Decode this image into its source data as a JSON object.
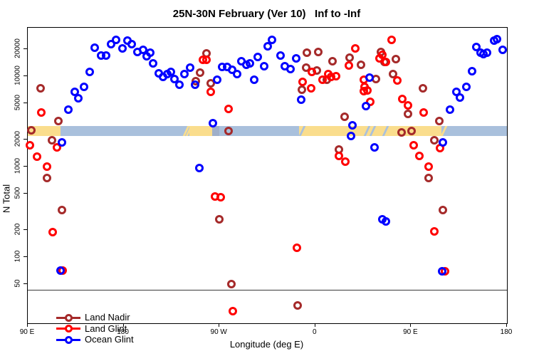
{
  "chart_data": {
    "type": "scatter",
    "title": "25N-30N February (Ver 10)   Inf to -Inf",
    "xlabel": "Longitude (deg E)",
    "ylabel": "N Total",
    "x_axis": {
      "range": [
        90,
        540
      ],
      "ticks": [
        {
          "lon": 90,
          "label": "90 E"
        },
        {
          "lon": 180,
          "label": "180"
        },
        {
          "lon": 270,
          "label": "90 W"
        },
        {
          "lon": 360,
          "label": "0"
        },
        {
          "lon": 450,
          "label": "90 E"
        },
        {
          "lon": 540,
          "label": "180"
        }
      ],
      "note": "longitude axis wraps: 90E to 180 to 90W to 0 to 90E to 180 (450 deg span, stored unwrapped 90..540)"
    },
    "y_axis": {
      "scale": "log",
      "range": [
        18.4,
        34500
      ],
      "ticks": [
        50,
        100,
        200,
        500,
        1000,
        2000,
        5000,
        10000,
        20000
      ]
    },
    "threshold_line": {
      "value": 43
    },
    "map_band": {
      "value_range": [
        2180,
        2815
      ],
      "colors": {
        "land": "#FADD8D",
        "ocean": "#A9C0DC",
        "shelf": "#9FAFC9"
      },
      "segments": [
        {
          "from": 90,
          "to": 120.5,
          "surface": "land"
        },
        {
          "from": 120.5,
          "to": 242,
          "surface": "ocean"
        },
        {
          "from": 242,
          "to": 263.5,
          "surface": "land"
        },
        {
          "from": 263.5,
          "to": 270,
          "surface": "shelf"
        },
        {
          "from": 270,
          "to": 345,
          "surface": "ocean"
        },
        {
          "from": 345,
          "to": 478.5,
          "surface": "land"
        },
        {
          "from": 478.5,
          "to": 540,
          "surface": "ocean"
        }
      ],
      "streaks": [
        {
          "at": 237.5,
          "surface": "land"
        },
        {
          "at": 240.5,
          "surface": "land"
        },
        {
          "at": 346.5,
          "surface": "ocean"
        },
        {
          "at": 407.5,
          "surface": "ocean"
        },
        {
          "at": 413,
          "surface": "ocean"
        },
        {
          "at": 425,
          "surface": "ocean"
        },
        {
          "at": 480,
          "surface": "land"
        }
      ]
    },
    "legend": {
      "position": "bottom-left"
    },
    "series": [
      {
        "name": "Land Nadir",
        "color": "#A52A2A",
        "points": [
          [
            102.2,
            7330
          ],
          [
            118.5,
            3180
          ],
          [
            93.3,
            2540
          ],
          [
            112.9,
            1960
          ],
          [
            257.6,
            17800
          ],
          [
            252,
            11000
          ],
          [
            248,
            8890
          ],
          [
            261.8,
            8370
          ],
          [
            278.5,
            2490
          ],
          [
            352.2,
            18200
          ],
          [
            362.6,
            18700
          ],
          [
            351.5,
            12500
          ],
          [
            361.5,
            11500
          ],
          [
            370.8,
            9210
          ],
          [
            376,
            14700
          ],
          [
            392.2,
            16100
          ],
          [
            402.7,
            13400
          ],
          [
            417.1,
            9330
          ],
          [
            387.8,
            3580
          ],
          [
            382.2,
            1540
          ],
          [
            347.7,
            7110
          ],
          [
            421.8,
            18700
          ],
          [
            424.9,
            14400
          ],
          [
            435.9,
            15600
          ],
          [
            432.8,
            10600
          ],
          [
            461,
            7410
          ],
          [
            447,
            3810
          ],
          [
            476.6,
            3180
          ],
          [
            441,
            2390
          ],
          [
            450.5,
            2470
          ],
          [
            472.1,
            1960
          ],
          [
            108.2,
            748
          ],
          [
            121.8,
            332
          ],
          [
            269.8,
            259
          ],
          [
            281.4,
            50
          ],
          [
            343.2,
            29
          ],
          [
            466.6,
            744
          ],
          [
            480.1,
            332
          ]
        ]
      },
      {
        "name": "Land Glint",
        "color": "#FF0000",
        "points": [
          [
            102.7,
            3950
          ],
          [
            91.8,
            1730
          ],
          [
            117.2,
            1640
          ],
          [
            98.5,
            1300
          ],
          [
            107.8,
            1000
          ],
          [
            254.2,
            15100
          ],
          [
            257.6,
            15100
          ],
          [
            261.8,
            6690
          ],
          [
            278.5,
            4380
          ],
          [
            397.6,
            20300
          ],
          [
            356.6,
            11200
          ],
          [
            367,
            9210
          ],
          [
            371.9,
            10600
          ],
          [
            374.8,
            9790
          ],
          [
            379.7,
            10000
          ],
          [
            391.5,
            13200
          ],
          [
            348.2,
            8670
          ],
          [
            355.9,
            7330
          ],
          [
            405.6,
            9210
          ],
          [
            406,
            7670
          ],
          [
            405.6,
            6810
          ],
          [
            408.7,
            6980
          ],
          [
            411.6,
            5250
          ],
          [
            420.5,
            15900
          ],
          [
            423.3,
            17300
          ],
          [
            426.5,
            14300
          ],
          [
            432,
            25400
          ],
          [
            382,
            1310
          ],
          [
            388.3,
            1140
          ],
          [
            437,
            9040
          ],
          [
            441.7,
            5580
          ],
          [
            447,
            4740
          ],
          [
            461.7,
            3990
          ],
          [
            477.3,
            1610
          ],
          [
            452.1,
            1730
          ],
          [
            457.7,
            1310
          ],
          [
            466.6,
            993
          ],
          [
            113.4,
            189
          ],
          [
            122.9,
            70
          ],
          [
            265.8,
            469
          ],
          [
            271.4,
            460
          ],
          [
            282.5,
            25
          ],
          [
            343,
            126
          ],
          [
            472.1,
            191
          ],
          [
            481.6,
            69
          ]
        ]
      },
      {
        "name": "Ocean Glint",
        "color": "#0000FF",
        "points": [
          [
            153,
            20800
          ],
          [
            158.6,
            16900
          ],
          [
            163.4,
            16900
          ],
          [
            168.3,
            22900
          ],
          [
            172.8,
            25500
          ],
          [
            178.6,
            20200
          ],
          [
            183.5,
            24900
          ],
          [
            187.9,
            22900
          ],
          [
            192.8,
            18700
          ],
          [
            198.4,
            19500
          ],
          [
            201.9,
            16600
          ],
          [
            148.3,
            11200
          ],
          [
            142.7,
            7640
          ],
          [
            133.9,
            6690
          ],
          [
            137.2,
            5740
          ],
          [
            128.3,
            4250
          ],
          [
            121.8,
            1840
          ],
          [
            205.3,
            18400
          ],
          [
            208,
            13800
          ],
          [
            212.8,
            10800
          ],
          [
            216.9,
            9900
          ],
          [
            220.9,
            10600
          ],
          [
            224.2,
            11100
          ],
          [
            228,
            9330
          ],
          [
            232.4,
            8020
          ],
          [
            236.9,
            10600
          ],
          [
            242.4,
            12500
          ],
          [
            246.9,
            8020
          ],
          [
            267.6,
            9160
          ],
          [
            272.4,
            12600
          ],
          [
            276.9,
            12800
          ],
          [
            281.8,
            11800
          ],
          [
            286.3,
            10600
          ],
          [
            290.3,
            14700
          ],
          [
            295.2,
            13400
          ],
          [
            298.8,
            14000
          ],
          [
            302.5,
            9210
          ],
          [
            306.3,
            16300
          ],
          [
            311.9,
            13000
          ],
          [
            315.5,
            21500
          ],
          [
            263.6,
            3040
          ],
          [
            251.4,
            964
          ],
          [
            319.2,
            25400
          ],
          [
            327.7,
            17100
          ],
          [
            341.9,
            15900
          ],
          [
            331.5,
            13000
          ],
          [
            336.6,
            12000
          ],
          [
            347,
            5480
          ],
          [
            410.9,
            9620
          ],
          [
            407.8,
            4650
          ],
          [
            394.9,
            2870
          ],
          [
            393.8,
            2180
          ],
          [
            415.6,
            1640
          ],
          [
            511.1,
            21100
          ],
          [
            515.5,
            18200
          ],
          [
            518.2,
            17600
          ],
          [
            521.1,
            18400
          ],
          [
            527.8,
            24900
          ],
          [
            530.6,
            25800
          ],
          [
            536,
            19500
          ],
          [
            507.1,
            11300
          ],
          [
            501.8,
            7670
          ],
          [
            492.2,
            6690
          ],
          [
            496,
            5820
          ],
          [
            486.6,
            4250
          ],
          [
            480,
            1840
          ],
          [
            120.5,
            70
          ],
          [
            422.7,
            259
          ],
          [
            426,
            248
          ],
          [
            479.4,
            69
          ]
        ]
      }
    ]
  }
}
